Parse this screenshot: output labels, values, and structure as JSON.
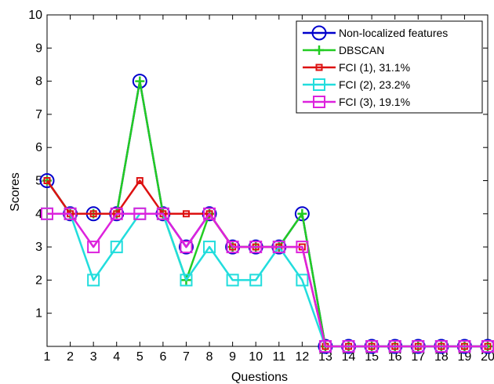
{
  "chart_data": {
    "type": "line",
    "title": "",
    "xlabel": "Questions",
    "ylabel": "Scores",
    "x": [
      1,
      2,
      3,
      4,
      5,
      6,
      7,
      8,
      9,
      10,
      11,
      12,
      13,
      14,
      15,
      16,
      17,
      18,
      19,
      20
    ],
    "xlim": [
      1,
      20
    ],
    "ylim": [
      0,
      10
    ],
    "xticks": [
      "1",
      "2",
      "3",
      "4",
      "5",
      "6",
      "7",
      "8",
      "9",
      "10",
      "11",
      "12",
      "13",
      "14",
      "15",
      "16",
      "17",
      "18",
      "19",
      "20"
    ],
    "yticks": [
      "1",
      "2",
      "3",
      "4",
      "5",
      "6",
      "7",
      "8",
      "9",
      "10"
    ],
    "grid": false,
    "legend_position": "top-right",
    "series": [
      {
        "name": "Non-localized features",
        "color": "#0000cc",
        "marker": "circle",
        "values": [
          5,
          4,
          4,
          4,
          8,
          4,
          3,
          4,
          3,
          3,
          3,
          4,
          0,
          0,
          0,
          0,
          0,
          0,
          0,
          0
        ]
      },
      {
        "name": "DBSCAN",
        "color": "#22cc22",
        "marker": "plus",
        "values": [
          5,
          4,
          4,
          4,
          8,
          4,
          2,
          4,
          3,
          3,
          3,
          4,
          0,
          0,
          0,
          0,
          0,
          0,
          0,
          0
        ]
      },
      {
        "name": "FCI (1), 31.1%",
        "color": "#dd1111",
        "marker": "small-square",
        "values": [
          5,
          4,
          4,
          4,
          5,
          4,
          4,
          4,
          3,
          3,
          3,
          3,
          0,
          0,
          0,
          0,
          0,
          0,
          0,
          0
        ]
      },
      {
        "name": "FCI (2), 23.2%",
        "color": "#22dddd",
        "marker": "square",
        "values": [
          4,
          4,
          2,
          3,
          4,
          4,
          2,
          3,
          2,
          2,
          3,
          2,
          0,
          0,
          0,
          0,
          0,
          0,
          0,
          0
        ]
      },
      {
        "name": "FCI (3), 19.1%",
        "color": "#dd22dd",
        "marker": "square",
        "values": [
          4,
          4,
          3,
          4,
          4,
          4,
          3,
          4,
          3,
          3,
          3,
          3,
          0,
          0,
          0,
          0,
          0,
          0,
          0,
          0
        ]
      }
    ]
  }
}
